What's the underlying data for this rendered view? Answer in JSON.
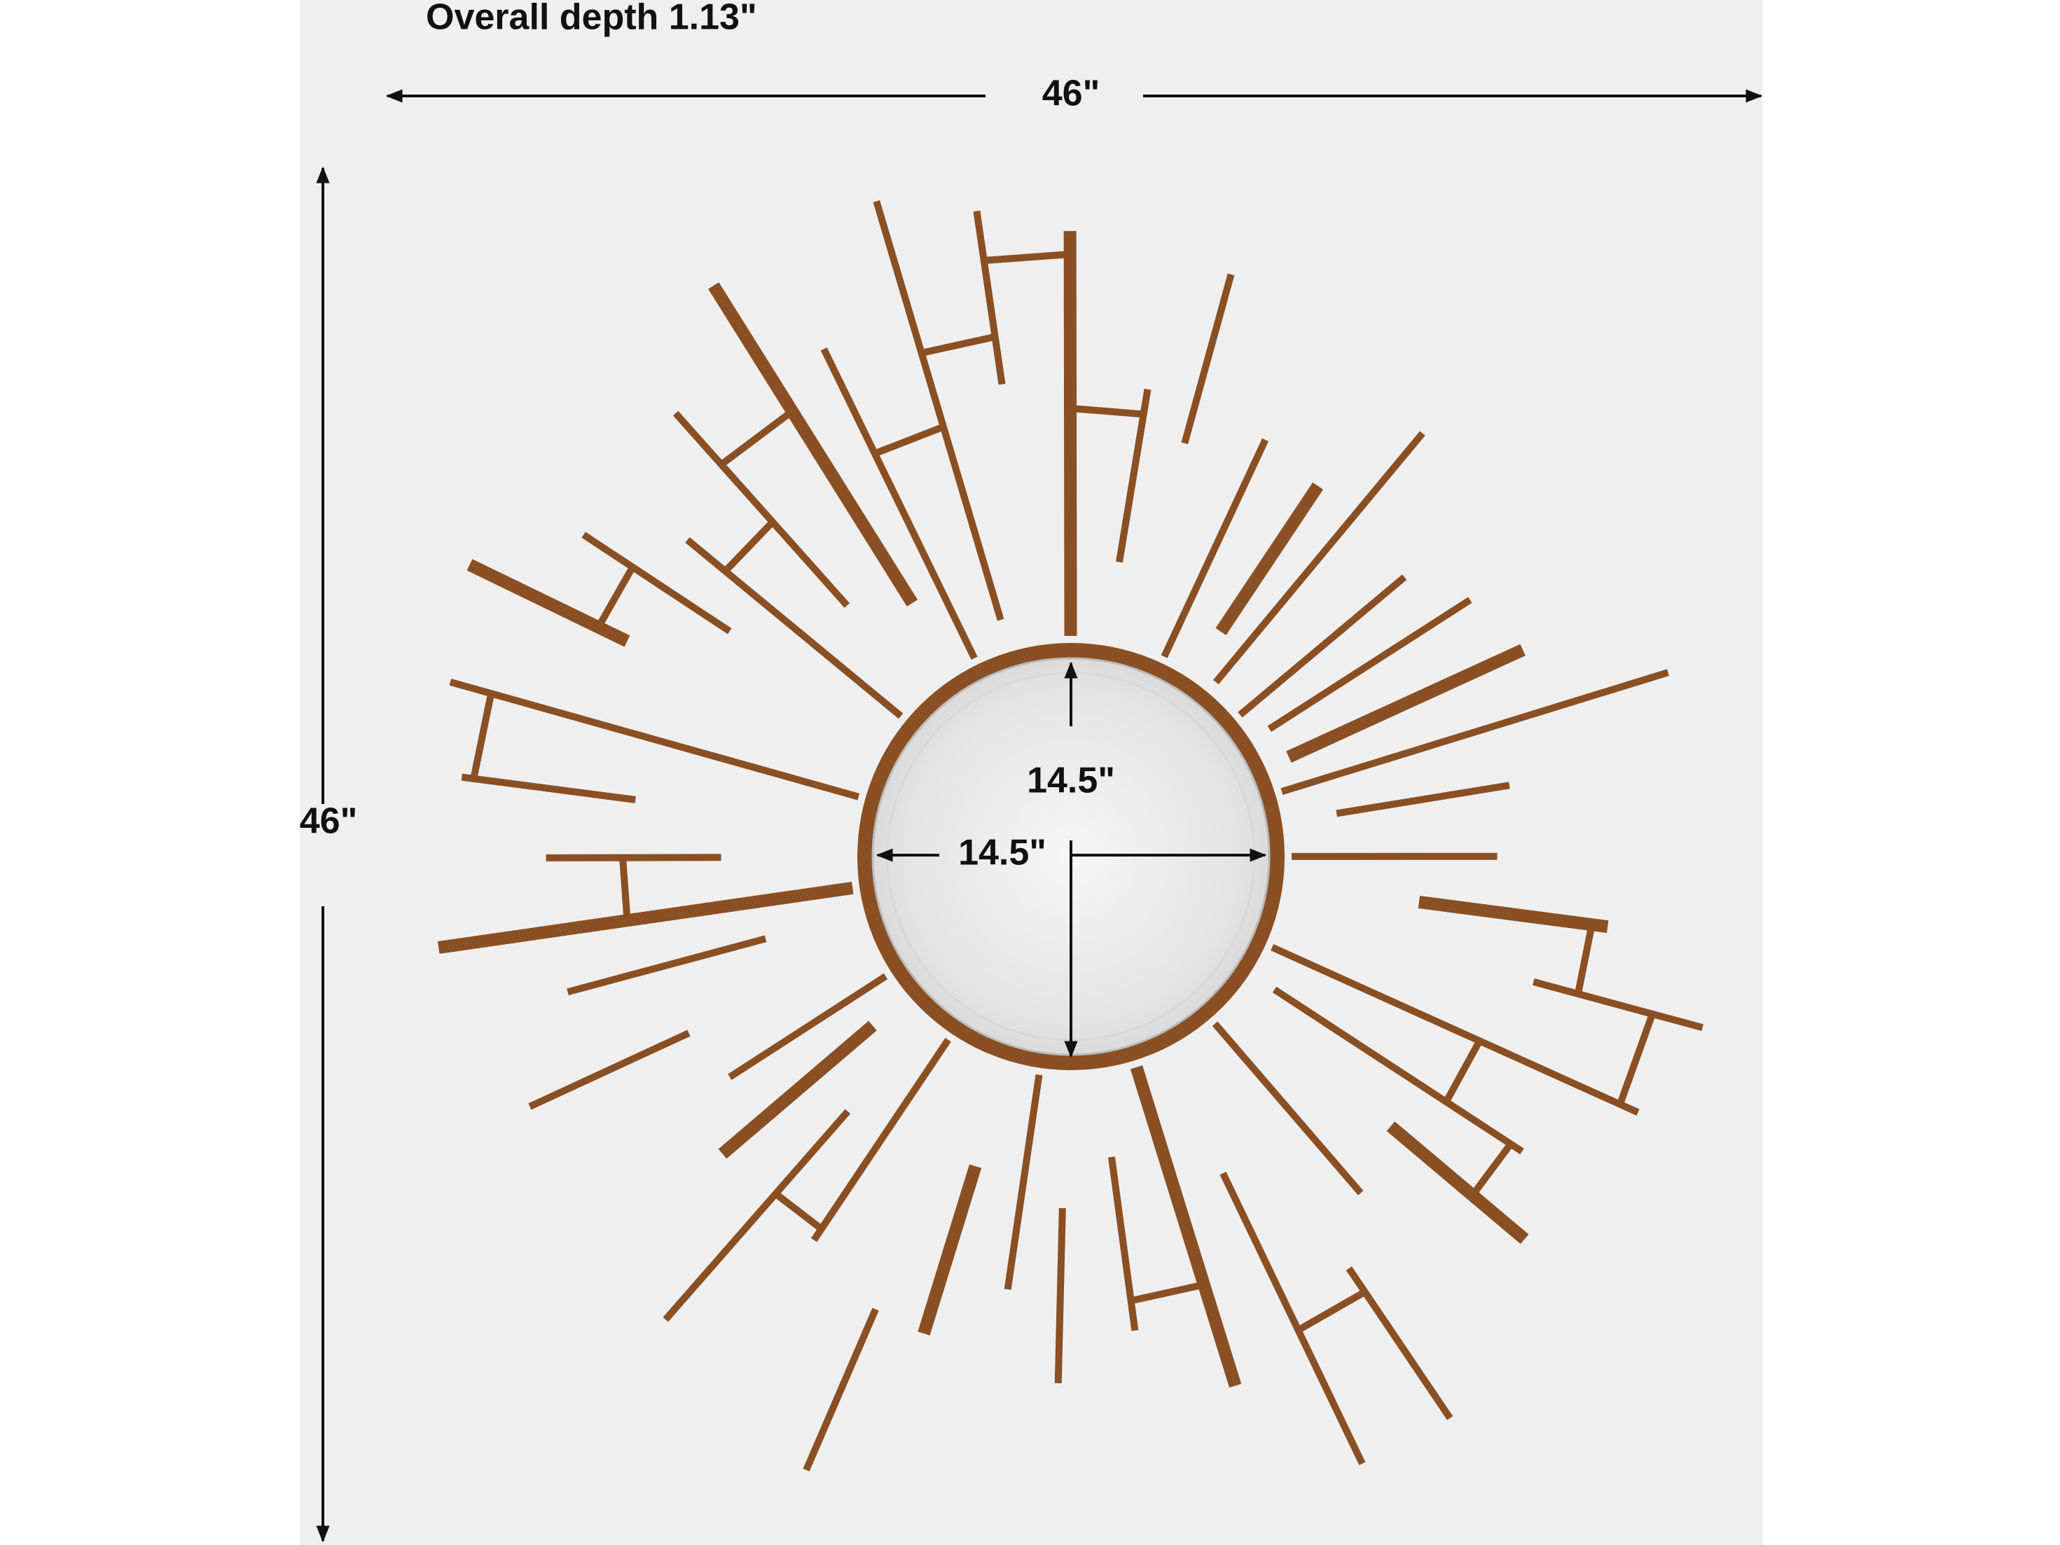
{
  "depth_label": "Overall depth 1.13\"",
  "width_label": "46\"",
  "height_label": "46\"",
  "mirror_height_label": "14.5\"",
  "mirror_width_label": "14.5\""
}
